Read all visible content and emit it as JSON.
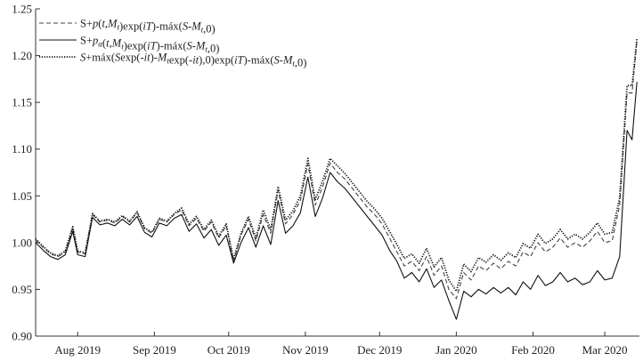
{
  "chart_data": {
    "type": "line",
    "title": "",
    "xlabel": "",
    "ylabel": "",
    "ylim": [
      0.9,
      1.25
    ],
    "xlim": [
      "2019-07-15",
      "2020-03-15"
    ],
    "y_ticks": [
      "0.90",
      "0.95",
      "1.00",
      "1.05",
      "1.10",
      "1.15",
      "1.20",
      "1.25"
    ],
    "x_ticks": [
      {
        "date": "2019-08-01",
        "label": "Aug 2019"
      },
      {
        "date": "2019-09-01",
        "label": "Sep 2019"
      },
      {
        "date": "2019-10-01",
        "label": "Oct 2019"
      },
      {
        "date": "2019-11-01",
        "label": "Nov 2019"
      },
      {
        "date": "2019-12-01",
        "label": "Dec 2019"
      },
      {
        "date": "2020-01-01",
        "label": "Jan 2020"
      },
      {
        "date": "2020-02-01",
        "label": "Feb 2020"
      },
      {
        "date": "2020-03-01",
        "label": "Mar 2020"
      }
    ],
    "legend_position": "top-left",
    "grid": false,
    "legend_items": [
      {
        "style": "dashed",
        "parts": [
          [
            "S+",
            ""
          ],
          [
            "p",
            "it"
          ],
          [
            "(",
            ""
          ],
          [
            "t",
            "it"
          ],
          [
            ",",
            ""
          ],
          [
            "M",
            "it"
          ],
          [
            "t",
            "sub"
          ],
          [
            ")exp(",
            ""
          ],
          [
            "iT",
            "it"
          ],
          [
            ")-máx(",
            ""
          ],
          [
            "S",
            "it"
          ],
          [
            "-",
            ""
          ],
          [
            "M",
            "it"
          ],
          [
            "t",
            "sub"
          ],
          [
            ",0)",
            ""
          ]
        ]
      },
      {
        "style": "solid",
        "parts": [
          [
            "S+",
            ""
          ],
          [
            "p",
            "it"
          ],
          [
            "α",
            "sub"
          ],
          [
            "(",
            ""
          ],
          [
            "t",
            "it"
          ],
          [
            ",",
            ""
          ],
          [
            "M",
            "it"
          ],
          [
            "t",
            "sub"
          ],
          [
            ")exp(",
            ""
          ],
          [
            "iT",
            "it"
          ],
          [
            ")-máx(",
            ""
          ],
          [
            "S",
            "it"
          ],
          [
            "-",
            ""
          ],
          [
            "M",
            "it"
          ],
          [
            "t",
            "sub"
          ],
          [
            ",0)",
            ""
          ]
        ]
      },
      {
        "style": "dotted",
        "parts": [
          [
            "S",
            "it"
          ],
          [
            "+máx(",
            ""
          ],
          [
            "S",
            "it"
          ],
          [
            "exp(-",
            ""
          ],
          [
            "it",
            "it"
          ],
          [
            ")-",
            ""
          ],
          [
            "M",
            "it"
          ],
          [
            "t",
            "sub"
          ],
          [
            "exp(-",
            ""
          ],
          [
            "it",
            "it"
          ],
          [
            "),0)exp(",
            ""
          ],
          [
            "iT",
            "it"
          ],
          [
            ")-máx(",
            ""
          ],
          [
            "S",
            "it"
          ],
          [
            "-",
            ""
          ],
          [
            "M",
            "it"
          ],
          [
            "t",
            "sub"
          ],
          [
            ",0)",
            ""
          ]
        ]
      }
    ],
    "x": [
      "2019-07-15",
      "2019-07-18",
      "2019-07-21",
      "2019-07-24",
      "2019-07-27",
      "2019-07-30",
      "2019-08-01",
      "2019-08-04",
      "2019-08-07",
      "2019-08-10",
      "2019-08-13",
      "2019-08-16",
      "2019-08-19",
      "2019-08-22",
      "2019-08-25",
      "2019-08-28",
      "2019-08-31",
      "2019-09-03",
      "2019-09-06",
      "2019-09-09",
      "2019-09-12",
      "2019-09-15",
      "2019-09-18",
      "2019-09-21",
      "2019-09-24",
      "2019-09-27",
      "2019-09-30",
      "2019-10-03",
      "2019-10-06",
      "2019-10-09",
      "2019-10-12",
      "2019-10-15",
      "2019-10-18",
      "2019-10-21",
      "2019-10-24",
      "2019-10-27",
      "2019-10-30",
      "2019-11-02",
      "2019-11-05",
      "2019-11-08",
      "2019-11-11",
      "2019-11-14",
      "2019-11-17",
      "2019-11-20",
      "2019-11-23",
      "2019-11-26",
      "2019-11-29",
      "2019-12-02",
      "2019-12-05",
      "2019-12-08",
      "2019-12-11",
      "2019-12-14",
      "2019-12-17",
      "2019-12-20",
      "2019-12-23",
      "2019-12-26",
      "2019-12-29",
      "2020-01-01",
      "2020-01-04",
      "2020-01-07",
      "2020-01-10",
      "2020-01-13",
      "2020-01-16",
      "2020-01-19",
      "2020-01-22",
      "2020-01-25",
      "2020-01-28",
      "2020-01-31",
      "2020-02-03",
      "2020-02-06",
      "2020-02-09",
      "2020-02-12",
      "2020-02-15",
      "2020-02-18",
      "2020-02-21",
      "2020-02-24",
      "2020-02-27",
      "2020-03-01",
      "2020-03-04",
      "2020-03-07",
      "2020-03-10",
      "2020-03-12",
      "2020-03-14"
    ],
    "series": [
      {
        "name": "",
        "style": "dashed",
        "values": [
          1.003,
          0.995,
          0.988,
          0.985,
          0.99,
          1.016,
          0.99,
          0.988,
          1.03,
          1.022,
          1.024,
          1.021,
          1.028,
          1.022,
          1.032,
          1.015,
          1.01,
          1.025,
          1.022,
          1.03,
          1.035,
          1.018,
          1.026,
          1.012,
          1.022,
          1.005,
          1.018,
          0.98,
          1.008,
          1.025,
          1.002,
          1.03,
          1.01,
          1.056,
          1.02,
          1.03,
          1.045,
          1.084,
          1.04,
          1.06,
          1.085,
          1.075,
          1.068,
          1.058,
          1.048,
          1.038,
          1.03,
          1.02,
          1.005,
          0.99,
          0.975,
          0.98,
          0.97,
          0.985,
          0.965,
          0.975,
          0.95,
          0.94,
          0.968,
          0.96,
          0.975,
          0.97,
          0.978,
          0.972,
          0.98,
          0.975,
          0.99,
          0.985,
          1.0,
          0.99,
          0.995,
          1.005,
          0.995,
          1.0,
          0.995,
          1.002,
          1.012,
          1.0,
          1.002,
          1.04,
          1.16,
          1.16,
          1.216
        ]
      },
      {
        "name": "",
        "style": "solid",
        "values": [
          1.0,
          0.992,
          0.985,
          0.982,
          0.987,
          1.012,
          0.987,
          0.985,
          1.027,
          1.019,
          1.021,
          1.018,
          1.025,
          1.019,
          1.028,
          1.011,
          1.006,
          1.021,
          1.018,
          1.026,
          1.03,
          1.012,
          1.02,
          1.005,
          1.014,
          0.997,
          1.008,
          0.978,
          1.0,
          1.016,
          0.995,
          1.018,
          0.998,
          1.045,
          1.01,
          1.018,
          1.032,
          1.07,
          1.028,
          1.048,
          1.075,
          1.065,
          1.058,
          1.048,
          1.038,
          1.028,
          1.018,
          1.008,
          0.992,
          0.98,
          0.962,
          0.968,
          0.958,
          0.972,
          0.952,
          0.96,
          0.938,
          0.918,
          0.948,
          0.942,
          0.95,
          0.945,
          0.952,
          0.946,
          0.952,
          0.944,
          0.958,
          0.95,
          0.965,
          0.954,
          0.958,
          0.968,
          0.958,
          0.962,
          0.955,
          0.958,
          0.97,
          0.96,
          0.962,
          0.985,
          1.12,
          1.11,
          1.172
        ]
      },
      {
        "name": "",
        "style": "dotted",
        "values": [
          1.004,
          0.996,
          0.989,
          0.986,
          0.991,
          1.017,
          0.991,
          0.989,
          1.031,
          1.023,
          1.025,
          1.022,
          1.029,
          1.023,
          1.033,
          1.016,
          1.011,
          1.026,
          1.023,
          1.031,
          1.037,
          1.02,
          1.028,
          1.014,
          1.024,
          1.007,
          1.02,
          0.982,
          1.01,
          1.028,
          1.005,
          1.035,
          1.014,
          1.06,
          1.024,
          1.034,
          1.05,
          1.09,
          1.046,
          1.066,
          1.09,
          1.082,
          1.074,
          1.064,
          1.054,
          1.044,
          1.036,
          1.026,
          1.012,
          0.998,
          0.983,
          0.988,
          0.978,
          0.994,
          0.974,
          0.984,
          0.96,
          0.948,
          0.977,
          0.969,
          0.984,
          0.979,
          0.987,
          0.981,
          0.989,
          0.984,
          0.999,
          0.994,
          1.009,
          0.999,
          1.004,
          1.014,
          1.004,
          1.009,
          1.004,
          1.011,
          1.021,
          1.009,
          1.011,
          1.048,
          1.168,
          1.168,
          1.218
        ]
      }
    ]
  }
}
